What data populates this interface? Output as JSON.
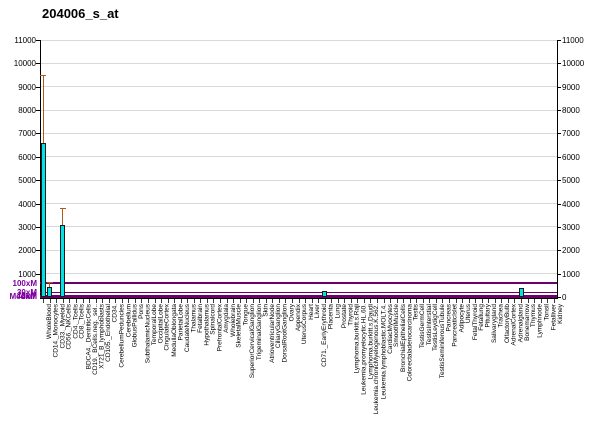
{
  "chart_data": {
    "type": "bar",
    "title": "204006_s_at",
    "xlabel": "",
    "ylabel": "",
    "ylim": [
      0,
      11000
    ],
    "grid": true,
    "legend": "none",
    "left_axis_ticks": [
      11000,
      10000,
      9000,
      8000,
      7000,
      6000,
      5000,
      4000,
      3000,
      2000,
      1000
    ],
    "right_axis_ticks": [
      11000,
      10000,
      9000,
      8000,
      7000,
      6000,
      5000,
      4000,
      3000,
      2000,
      1000,
      0
    ],
    "categories": [
      "WholeBlood",
      "CD14._Monocytes",
      "CD33._Myeloid",
      "CD56._NKCells",
      "CD4._Tcells",
      "CD8._Tcells",
      "BDCA4._DentriticCells",
      "CD19._BCells.neg._sel..",
      "X721_B_lymphoblasts",
      "CD105._Endothelial",
      "CD34.",
      "CerebellumPeduncles",
      "Cerebellum",
      "GlobusPallidus",
      "Pons",
      "SubthalamicNucleus",
      "TemporalLobe",
      "OccipitalLobe",
      "CingulateCortex",
      "MedullaOblongata",
      "ParietalLobe",
      "CaudateNucleus",
      "Thalamus",
      "Fetalbrain",
      "Hypothalamus",
      "Spinalcord",
      "PrefrontalCortex",
      "Amygdala",
      "Wholebrain",
      "SkeletalMuscle",
      "Tongue",
      "SuperiorCervicalGanglion",
      "TrigeminalGanglion",
      "Skin",
      "AtrioventricularNode",
      "CiliaryGanglion",
      "DorsalRootGanglion",
      "Ovary",
      "Appendix",
      "UterusCorpus",
      "Heart",
      "Liver",
      "CD71._EarlyErythroid",
      "Placenta",
      "Lung",
      "Prostate",
      "Thyroid",
      "Lymphoma.burkitt.s.Raji",
      "Leukemia.promyelocytic.HL.60.",
      "Lymphoma.burkitt.s.Daudi",
      "Leukemia.chronicMyelogenous.K.562.",
      "Leukemia.lymphoblastic.MOLT.4.",
      "CardiacMyocytes",
      "SmoothMuscle",
      "BronchialEpithelialCells",
      "Colorectaladenocarcinoma",
      "Testis",
      "TestisGermCell",
      "TestisInterstial",
      "TestisLeydigCell",
      "TestisSeminiferousTubule",
      "Pancreas",
      "PancreaticIslet",
      "Adipocyte",
      "Uterus",
      "FetalThyroid",
      "Fetallung",
      "Pituitary",
      "Salivarygland",
      "Trachea",
      "OlfactoryBulb",
      "AdrenalCortex",
      "Adrenalgland",
      "Bonemarrow",
      "Thymus",
      "Lymphnode",
      "Tonsil",
      "Fetalliver",
      "Kidney"
    ],
    "values": [
      6600,
      420,
      30,
      3080,
      20,
      20,
      20,
      20,
      20,
      20,
      30,
      20,
      20,
      20,
      20,
      20,
      20,
      20,
      20,
      20,
      20,
      20,
      20,
      20,
      20,
      20,
      20,
      20,
      20,
      20,
      20,
      20,
      20,
      20,
      20,
      20,
      20,
      20,
      20,
      20,
      20,
      20,
      20,
      260,
      20,
      20,
      20,
      20,
      20,
      20,
      20,
      20,
      20,
      20,
      20,
      20,
      20,
      20,
      20,
      20,
      20,
      20,
      20,
      20,
      20,
      20,
      20,
      20,
      20,
      20,
      20,
      20,
      20,
      380,
      20,
      20,
      20,
      20,
      20
    ],
    "errors_high": [
      9500,
      650,
      null,
      3800,
      null,
      null,
      null,
      null,
      null,
      null,
      null,
      null,
      null,
      null,
      null,
      null,
      null,
      null,
      null,
      null,
      null,
      null,
      null,
      null,
      null,
      null,
      null,
      null,
      null,
      null,
      null,
      null,
      null,
      null,
      null,
      null,
      null,
      null,
      null,
      null,
      null,
      null,
      null,
      null,
      null,
      null,
      null,
      null,
      null,
      null,
      null,
      null,
      null,
      null,
      null,
      null,
      null,
      null,
      null,
      null,
      null,
      null,
      null,
      null,
      null,
      null,
      null,
      null,
      null,
      null,
      null,
      null,
      null,
      null,
      null,
      null,
      null,
      null,
      null
    ],
    "median_reference": {
      "labels": [
        "100xM",
        "30xM",
        "10xM",
        "3xM",
        "Median"
      ],
      "line_values": [
        580,
        174,
        58,
        17,
        6
      ],
      "median_value": 5.8
    },
    "colors": {
      "bar_fill": "#00e2e6",
      "bar_border": "#1a1a1a",
      "error_bar": "#b05a1e",
      "median_line": "#6b006b",
      "median_label": "#7d00a0",
      "gridline": "#d9d9d9",
      "axis": "#000000"
    }
  }
}
